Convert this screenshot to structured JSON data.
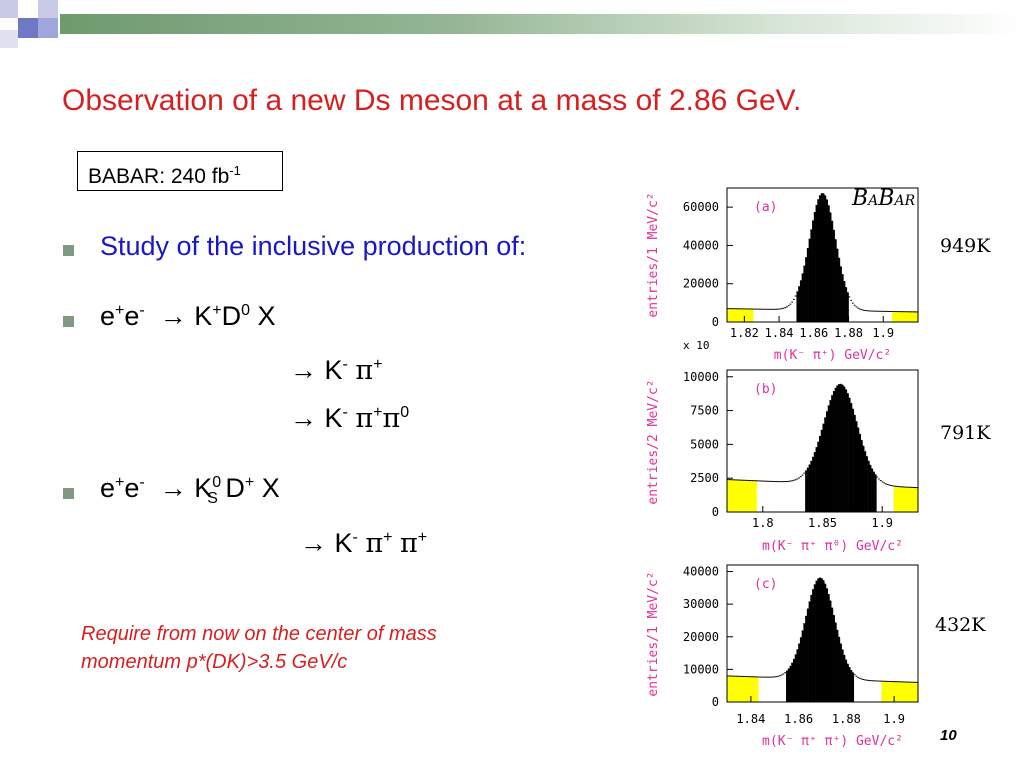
{
  "slide": {
    "title": "Observation of a new Ds meson at a mass of 2.86 GeV.",
    "babar_box": {
      "text": "BABAR: 240 fb",
      "sup": "-1"
    },
    "bullets": {
      "b1": "Study of the inclusive production of:",
      "b2": {
        "a": "e",
        "a_sup": "+",
        "b": "e",
        "b_sup": "-",
        "arrow": "→",
        "c": "K",
        "c_sup": "+",
        "d": "D",
        "d_sup": "0",
        "e": "X"
      },
      "b2_sub1": {
        "arrow": "→",
        "k": "K",
        "k_sup": "-",
        "pi": "π",
        "pi_sup": "+"
      },
      "b2_sub2": {
        "arrow": "→",
        "k": "K",
        "k_sup": "-",
        "pi": "π",
        "pi_sup": "+",
        "pi2": "π",
        "pi2_sup": "0"
      },
      "b3": {
        "a": "e",
        "a_sup": "+",
        "b": "e",
        "b_sup": "-",
        "arrow": "→",
        "c": "K",
        "c_sup": "0",
        "c_sub": "S",
        "d": "D",
        "d_sup": "+",
        "e": "X"
      },
      "b3_sub1": {
        "arrow": "→",
        "k": "K",
        "k_sup": "-",
        "pi": "π",
        "pi_sup": "+",
        "pi2": "π",
        "pi2_sup": "+"
      }
    },
    "note_line1": "Require from now on the center of mass",
    "note_line2": "momentum p*(DK)>3.5 GeV/c",
    "page_number": "10",
    "logo": {
      "b1": "B",
      "a1": "A",
      "b2": "B",
      "a2": "AR"
    },
    "counts": [
      "949K",
      "791K",
      "432K"
    ]
  },
  "chart_data": [
    {
      "type": "bar",
      "panel_label": "(a)",
      "ylabel": "entries/1 MeV/c²",
      "xlabel": "m(K⁻ π⁺) GeV/c²",
      "xlim": [
        1.81,
        1.92
      ],
      "ylim": [
        0,
        70000
      ],
      "xticks": [
        "1.82",
        "1.84",
        "1.86",
        "1.88",
        "1.9"
      ],
      "yticks": [
        "0",
        "20000",
        "40000",
        "60000"
      ],
      "peak_center": 1.865,
      "peak_sigma": 0.0075,
      "peak_height": 61000,
      "background": 7000,
      "signal_region": [
        1.85,
        1.88
      ],
      "sideband_regions": [
        [
          1.81,
          1.825
        ],
        [
          1.905,
          1.92
        ]
      ]
    },
    {
      "type": "bar",
      "panel_label": "(b)",
      "ylabel": "entries/2 MeV/c²",
      "xlabel": "m(K⁻ π⁺ π⁰) GeV/c²",
      "multiplier": "x 10",
      "xlim": [
        1.77,
        1.93
      ],
      "ylim": [
        0,
        10500
      ],
      "xticks": [
        "1.8",
        "1.85",
        "1.9"
      ],
      "yticks": [
        "0",
        "2500",
        "5000",
        "7500",
        "10000"
      ],
      "peak_center": 1.865,
      "peak_sigma": 0.014,
      "peak_height": 7400,
      "background": 2400,
      "signal_region": [
        1.835,
        1.895
      ],
      "sideband_regions": [
        [
          1.77,
          1.795
        ],
        [
          1.91,
          1.93
        ]
      ]
    },
    {
      "type": "bar",
      "panel_label": "(c)",
      "ylabel": "entries/1 MeV/c²",
      "xlabel": "m(K⁻ π⁺ π⁺) GeV/c²",
      "xlim": [
        1.83,
        1.91
      ],
      "ylim": [
        0,
        42000
      ],
      "xticks": [
        "1.84",
        "1.86",
        "1.88",
        "1.9"
      ],
      "yticks": [
        "0",
        "10000",
        "20000",
        "30000",
        "40000"
      ],
      "peak_center": 1.869,
      "peak_sigma": 0.006,
      "peak_height": 31000,
      "background": 8000,
      "signal_region": [
        1.855,
        1.883
      ],
      "sideband_regions": [
        [
          1.83,
          1.843
        ],
        [
          1.895,
          1.91
        ]
      ]
    }
  ]
}
